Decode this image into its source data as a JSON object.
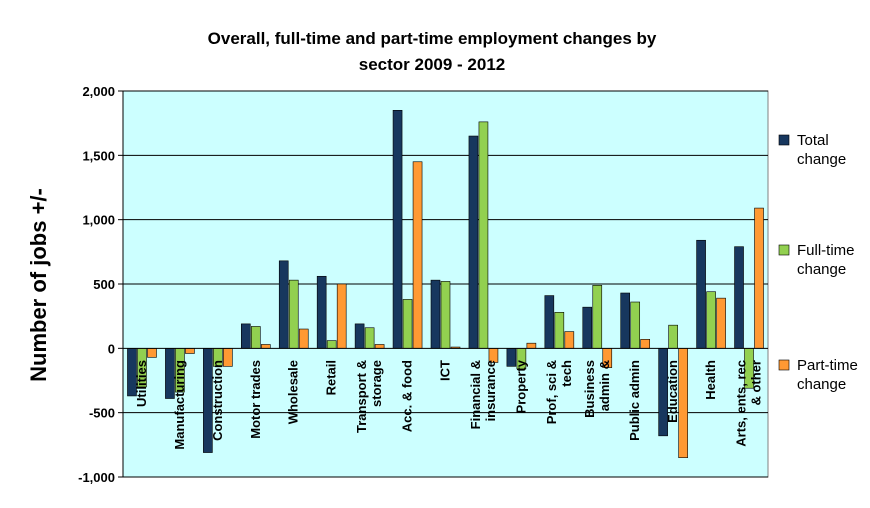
{
  "chart_data": {
    "type": "bar",
    "title": "Overall, full-time and part-time employment changes by sector 2009 - 2012",
    "ylabel": "Number of jobs +/-",
    "xlabel": "",
    "ylim": [
      -1000,
      2000
    ],
    "yticks": [
      -1000,
      -500,
      0,
      500,
      1000,
      1500,
      2000
    ],
    "ytick_labels": [
      "-1,000",
      "-500",
      "0",
      "500",
      "1,000",
      "1,500",
      "2,000"
    ],
    "grid": true,
    "legend_position": "right",
    "categories": [
      "Utilities",
      "Manufacturing",
      "Construction",
      "Motor trades",
      "Wholesale",
      "Retail",
      "Transport & storage",
      "Acc. & food",
      "ICT",
      "Financial & insurance",
      "Property",
      "Prof, sci & tech",
      "Business admin &",
      "Public admin",
      "Education",
      "Health",
      "Arts, ents, rec & other"
    ],
    "category_lines": [
      [
        "Utilities"
      ],
      [
        "Manufacturing"
      ],
      [
        "Construction"
      ],
      [
        "Motor trades"
      ],
      [
        "Wholesale"
      ],
      [
        "Retail"
      ],
      [
        "Transport &",
        "storage"
      ],
      [
        "Acc. & food"
      ],
      [
        "ICT"
      ],
      [
        "Financial &",
        "insurance"
      ],
      [
        "Property"
      ],
      [
        "Prof, sci &",
        "tech"
      ],
      [
        "Business",
        "admin &"
      ],
      [
        "Public admin"
      ],
      [
        "Education"
      ],
      [
        "Health"
      ],
      [
        "Arts, ents, rec",
        "& other"
      ]
    ],
    "series": [
      {
        "name": "Total change",
        "color": "#17375E",
        "values": [
          -370,
          -390,
          -810,
          190,
          680,
          560,
          190,
          1850,
          530,
          1650,
          -140,
          410,
          320,
          430,
          -680,
          840,
          790
        ]
      },
      {
        "name": "Full-time change",
        "color": "#92D050",
        "values": [
          -300,
          -340,
          -140,
          170,
          530,
          60,
          160,
          380,
          520,
          1760,
          -160,
          280,
          490,
          360,
          180,
          440,
          -310
        ]
      },
      {
        "name": "Part-time change",
        "color": "#FF9933",
        "values": [
          -70,
          -40,
          -140,
          30,
          150,
          500,
          30,
          1450,
          10,
          -110,
          40,
          130,
          -150,
          70,
          -850,
          390,
          1090
        ]
      }
    ],
    "colors": {
      "plot_background": "#CCFFFF",
      "gridline": "#000000"
    }
  }
}
